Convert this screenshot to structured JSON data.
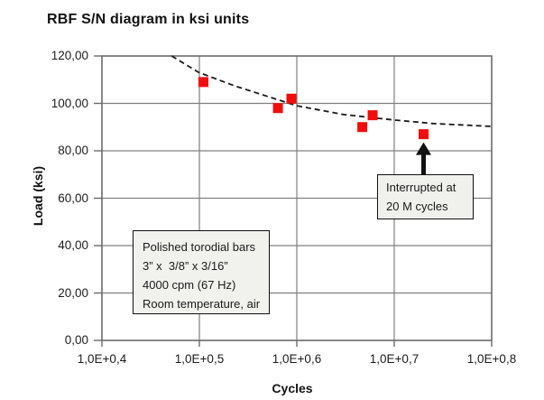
{
  "title": "RBF S/N diagram in ksi units",
  "colors": {
    "marker": "#f20d0d",
    "grid": "#808080",
    "frame": "#6b6b6b",
    "trend": "#1a1a1a",
    "arrow": "#111111",
    "box_bg": "#f1f1ee",
    "text": "#1a1a1a"
  },
  "chart_data": {
    "type": "scatter",
    "title": "RBF S/N diagram in ksi units",
    "xlabel": "Cycles",
    "ylabel": "Load (ksi)",
    "x_scale": "log",
    "xlim": [
      10000,
      100000000
    ],
    "ylim": [
      0,
      120
    ],
    "grid": true,
    "x_ticks": [
      {
        "label": "1,0E+0,4",
        "value": 10000
      },
      {
        "label": "1,0E+0,5",
        "value": 100000
      },
      {
        "label": "1,0E+0,6",
        "value": 1000000
      },
      {
        "label": "1,0E+0,7",
        "value": 10000000
      },
      {
        "label": "1,0E+0,8",
        "value": 100000000
      }
    ],
    "y_ticks": [
      {
        "label": "0,00",
        "value": 0
      },
      {
        "label": "20,00",
        "value": 20
      },
      {
        "label": "40,00",
        "value": 40
      },
      {
        "label": "60,00",
        "value": 60
      },
      {
        "label": "80,00",
        "value": 80
      },
      {
        "label": "100,00",
        "value": 100
      },
      {
        "label": "120,00",
        "value": 120
      }
    ],
    "points": [
      {
        "cycles": 110000,
        "load": 109
      },
      {
        "cycles": 640000,
        "load": 98
      },
      {
        "cycles": 880000,
        "load": 102
      },
      {
        "cycles": 4700000,
        "load": 90
      },
      {
        "cycles": 6000000,
        "load": 95
      },
      {
        "cycles": 20000000,
        "load": 87,
        "note": "interrupted"
      }
    ],
    "trendline": {
      "style": "dashed",
      "points": [
        [
          52000,
          120
        ],
        [
          98000,
          113.1
        ],
        [
          230000,
          107.4
        ],
        [
          540000,
          102.5
        ],
        [
          1000000,
          99.0
        ],
        [
          3000000,
          95.3
        ],
        [
          10000000,
          93.0
        ],
        [
          25000000,
          91.5
        ],
        [
          100000000,
          90.3
        ]
      ]
    },
    "annotation": {
      "lines": [
        "Interrupted at",
        "20 M cycles"
      ],
      "points_to": {
        "cycles": 20000000,
        "load": 87
      }
    },
    "info_box": {
      "lines": [
        "Polished torodial bars",
        "3” x  3/8” x 3/16”",
        "4000 cpm (67 Hz)",
        "Room temperature, air"
      ]
    }
  }
}
